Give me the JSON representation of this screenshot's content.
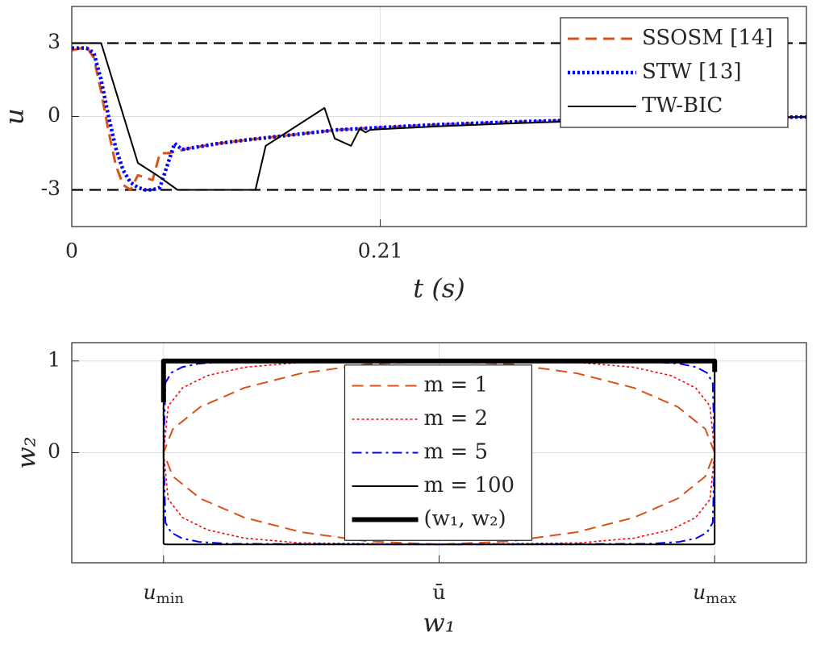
{
  "chart_data": [
    {
      "type": "line",
      "xlabel": "t (s)",
      "ylabel": "u",
      "xlim": [
        0,
        0.5
      ],
      "ylim": [
        -4.5,
        4.5
      ],
      "xticks": [
        0,
        0.21
      ],
      "yticks": [
        -3,
        0,
        3
      ],
      "grid": true,
      "hlines": [
        3,
        -3
      ],
      "legend": "upper right",
      "series": [
        {
          "name": "SSOSM [14]",
          "color": "#d95319",
          "style": "dashed",
          "linewidth": 3,
          "x": [
            0,
            0.01,
            0.015,
            0.02,
            0.025,
            0.03,
            0.035,
            0.04,
            0.045,
            0.05,
            0.055,
            0.06,
            0.065,
            0.07,
            0.08,
            0.1,
            0.12,
            0.15,
            0.18,
            0.21,
            0.25,
            0.3,
            0.35,
            0.4,
            0.45,
            0.5
          ],
          "values": [
            2.7,
            2.85,
            2.4,
            1,
            -0.6,
            -2,
            -2.8,
            -3,
            -2.4,
            -2.5,
            -2.6,
            -1.5,
            -1.5,
            -1.45,
            -1.3,
            -1.1,
            -0.95,
            -0.75,
            -0.55,
            -0.45,
            -0.33,
            -0.22,
            -0.14,
            -0.08,
            -0.04,
            -0.02
          ]
        },
        {
          "name": "STW [13]",
          "color": "#0000ff",
          "style": "dotted",
          "linewidth": 4.5,
          "x": [
            0,
            0.01,
            0.015,
            0.02,
            0.025,
            0.03,
            0.035,
            0.04,
            0.045,
            0.05,
            0.055,
            0.06,
            0.065,
            0.07,
            0.075,
            0.08,
            0.1,
            0.12,
            0.15,
            0.18,
            0.21,
            0.25,
            0.3,
            0.35,
            0.4,
            0.45,
            0.5
          ],
          "values": [
            2.8,
            2.8,
            2.6,
            1.5,
            0,
            -1.3,
            -2.2,
            -2.7,
            -2.9,
            -3,
            -3,
            -2.9,
            -2,
            -1.1,
            -1.35,
            -1.3,
            -1.1,
            -0.95,
            -0.75,
            -0.55,
            -0.45,
            -0.33,
            -0.22,
            -0.14,
            -0.08,
            -0.04,
            -0.02
          ]
        },
        {
          "name": "TW-BIC",
          "color": "#000000",
          "style": "solid",
          "linewidth": 2,
          "x": [
            0,
            0.02,
            0.045,
            0.058,
            0.072,
            0.125,
            0.132,
            0.172,
            0.179,
            0.19,
            0.196,
            0.2,
            0.203,
            0.21,
            0.25,
            0.3,
            0.35,
            0.4,
            0.45,
            0.5
          ],
          "values": [
            3,
            3,
            -1.9,
            -2.4,
            -3,
            -3,
            -1.2,
            0.35,
            -0.9,
            -1.2,
            -0.5,
            -0.65,
            -0.55,
            -0.52,
            -0.4,
            -0.28,
            -0.18,
            -0.1,
            -0.05,
            -0.02
          ]
        }
      ]
    },
    {
      "type": "line",
      "xlabel": "w₁",
      "ylabel": "w₂",
      "xlim": [
        -1.333,
        1.333
      ],
      "ylim": [
        -1.2,
        1.2
      ],
      "xticks": [
        {
          "value": -1,
          "label": "u",
          "sub": "min"
        },
        {
          "value": 0,
          "label": "ū"
        },
        {
          "value": 1,
          "label": "u",
          "sub": "max"
        }
      ],
      "yticks": [
        0,
        1
      ],
      "grid": true,
      "legend": "center",
      "series": [
        {
          "name": "m = 1",
          "color": "#d95319",
          "style": "dashed",
          "linewidth": 2,
          "closed": true,
          "x": [
            1,
            0.966,
            0.866,
            0.707,
            0.5,
            0.259,
            0,
            -0.259,
            -0.5,
            -0.707,
            -0.866,
            -0.966,
            -1,
            -0.966,
            -0.866,
            -0.707,
            -0.5,
            -0.259,
            0,
            0.259,
            0.5,
            0.707,
            0.866,
            0.966
          ],
          "values": [
            0,
            0.259,
            0.5,
            0.707,
            0.866,
            0.966,
            1,
            0.966,
            0.866,
            0.707,
            0.5,
            0.259,
            0,
            -0.259,
            -0.5,
            -0.707,
            -0.866,
            -0.966,
            -1,
            -0.966,
            -0.866,
            -0.707,
            -0.5,
            -0.259
          ]
        },
        {
          "name": "m = 2",
          "color": "#ff0000",
          "style": "dotted",
          "linewidth": 1.6,
          "closed": true,
          "x": [
            1,
            0.983,
            0.931,
            0.841,
            0.707,
            0.509,
            0,
            -0.509,
            -0.707,
            -0.841,
            -0.931,
            -0.983,
            -1,
            -0.983,
            -0.931,
            -0.841,
            -0.707,
            -0.509,
            0,
            0.509,
            0.707,
            0.841,
            0.931,
            0.983
          ],
          "values": [
            0,
            0.509,
            0.707,
            0.841,
            0.931,
            0.983,
            1,
            0.983,
            0.931,
            0.841,
            0.707,
            0.509,
            0,
            -0.509,
            -0.707,
            -0.841,
            -0.931,
            -0.983,
            -1,
            -0.983,
            -0.931,
            -0.841,
            -0.707,
            -0.509
          ]
        },
        {
          "name": "m = 5",
          "color": "#0000ff",
          "style": "dashdot",
          "linewidth": 2,
          "closed": true,
          "x": [
            1,
            0.993,
            0.972,
            0.933,
            0.871,
            0.763,
            0,
            -0.763,
            -0.871,
            -0.933,
            -0.972,
            -0.993,
            -1,
            -0.993,
            -0.972,
            -0.933,
            -0.871,
            -0.763,
            0,
            0.763,
            0.871,
            0.933,
            0.972,
            0.993
          ],
          "values": [
            0,
            0.763,
            0.871,
            0.933,
            0.972,
            0.993,
            1,
            0.993,
            0.972,
            0.933,
            0.871,
            0.763,
            0,
            -0.763,
            -0.871,
            -0.933,
            -0.972,
            -0.993,
            -1,
            -0.993,
            -0.972,
            -0.933,
            -0.871,
            -0.763
          ]
        },
        {
          "name": "m = 100",
          "color": "#000000",
          "style": "solid",
          "linewidth": 2,
          "closed": true,
          "x": [
            1,
            1,
            0.999,
            0.997,
            0.993,
            0.987,
            0,
            -0.987,
            -0.993,
            -0.997,
            -0.999,
            -1,
            -1,
            -1,
            -0.999,
            -0.997,
            -0.993,
            -0.987,
            0,
            0.987,
            0.993,
            0.997,
            0.999,
            1
          ],
          "values": [
            0,
            0.987,
            0.993,
            0.997,
            0.999,
            1,
            1,
            1,
            0.999,
            0.997,
            0.993,
            0.987,
            0,
            -0.987,
            -0.993,
            -0.997,
            -0.999,
            -1,
            -1,
            -1,
            -0.999,
            -0.997,
            -0.993,
            -0.987
          ]
        },
        {
          "name": "(w₁, w₂)",
          "color": "#000000",
          "style": "solid",
          "linewidth": 6,
          "x": [
            -1,
            -1,
            1,
            1
          ],
          "values": [
            0.55,
            1,
            1,
            0.88
          ]
        }
      ]
    }
  ]
}
